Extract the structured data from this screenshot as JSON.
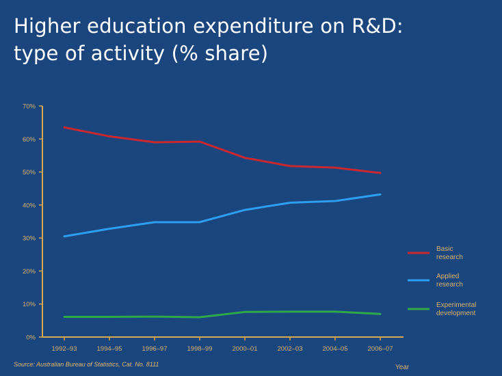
{
  "title_line1": "Higher education expenditure on R&D:",
  "title_line2": "type of activity (% share)",
  "source": "Source: Australian Bureau of Statistics, Cat. No. 8111",
  "colors": {
    "background": "#1b467d",
    "axis": "#d9a94f",
    "text": "#d9b36a",
    "basic": "#c8282f",
    "applied": "#2d9ff0",
    "experimental": "#2fa84a"
  },
  "chart_data": {
    "type": "line",
    "title": "Higher education expenditure on R&D: type of activity (% share)",
    "xlabel": "Year",
    "ylabel": "",
    "categories": [
      "1992–93",
      "1994–95",
      "1996–97",
      "1998–99",
      "2000–01",
      "2002–03",
      "2004–05",
      "2006–07"
    ],
    "y_tick_labels": [
      "0%",
      "10%",
      "20%",
      "30%",
      "40%",
      "50%",
      "60%",
      "70%"
    ],
    "ylim": [
      0,
      70
    ],
    "grid": false,
    "legend_position": "right",
    "series": [
      {
        "name": "Basic research",
        "legend_lines": [
          "Basic",
          "research"
        ],
        "color": "#c8282f",
        "values": [
          63.5,
          60.8,
          59.0,
          59.2,
          54.3,
          51.8,
          51.3,
          49.7
        ]
      },
      {
        "name": "Applied research",
        "legend_lines": [
          "Applied",
          "research"
        ],
        "color": "#2d9ff0",
        "values": [
          30.5,
          32.8,
          34.8,
          34.8,
          38.5,
          40.7,
          41.2,
          43.2
        ]
      },
      {
        "name": "Experimental development",
        "legend_lines": [
          "Experimental",
          "development"
        ],
        "color": "#2fa84a",
        "values": [
          6.1,
          6.1,
          6.2,
          6.0,
          7.6,
          7.7,
          7.7,
          7.0
        ]
      }
    ]
  }
}
